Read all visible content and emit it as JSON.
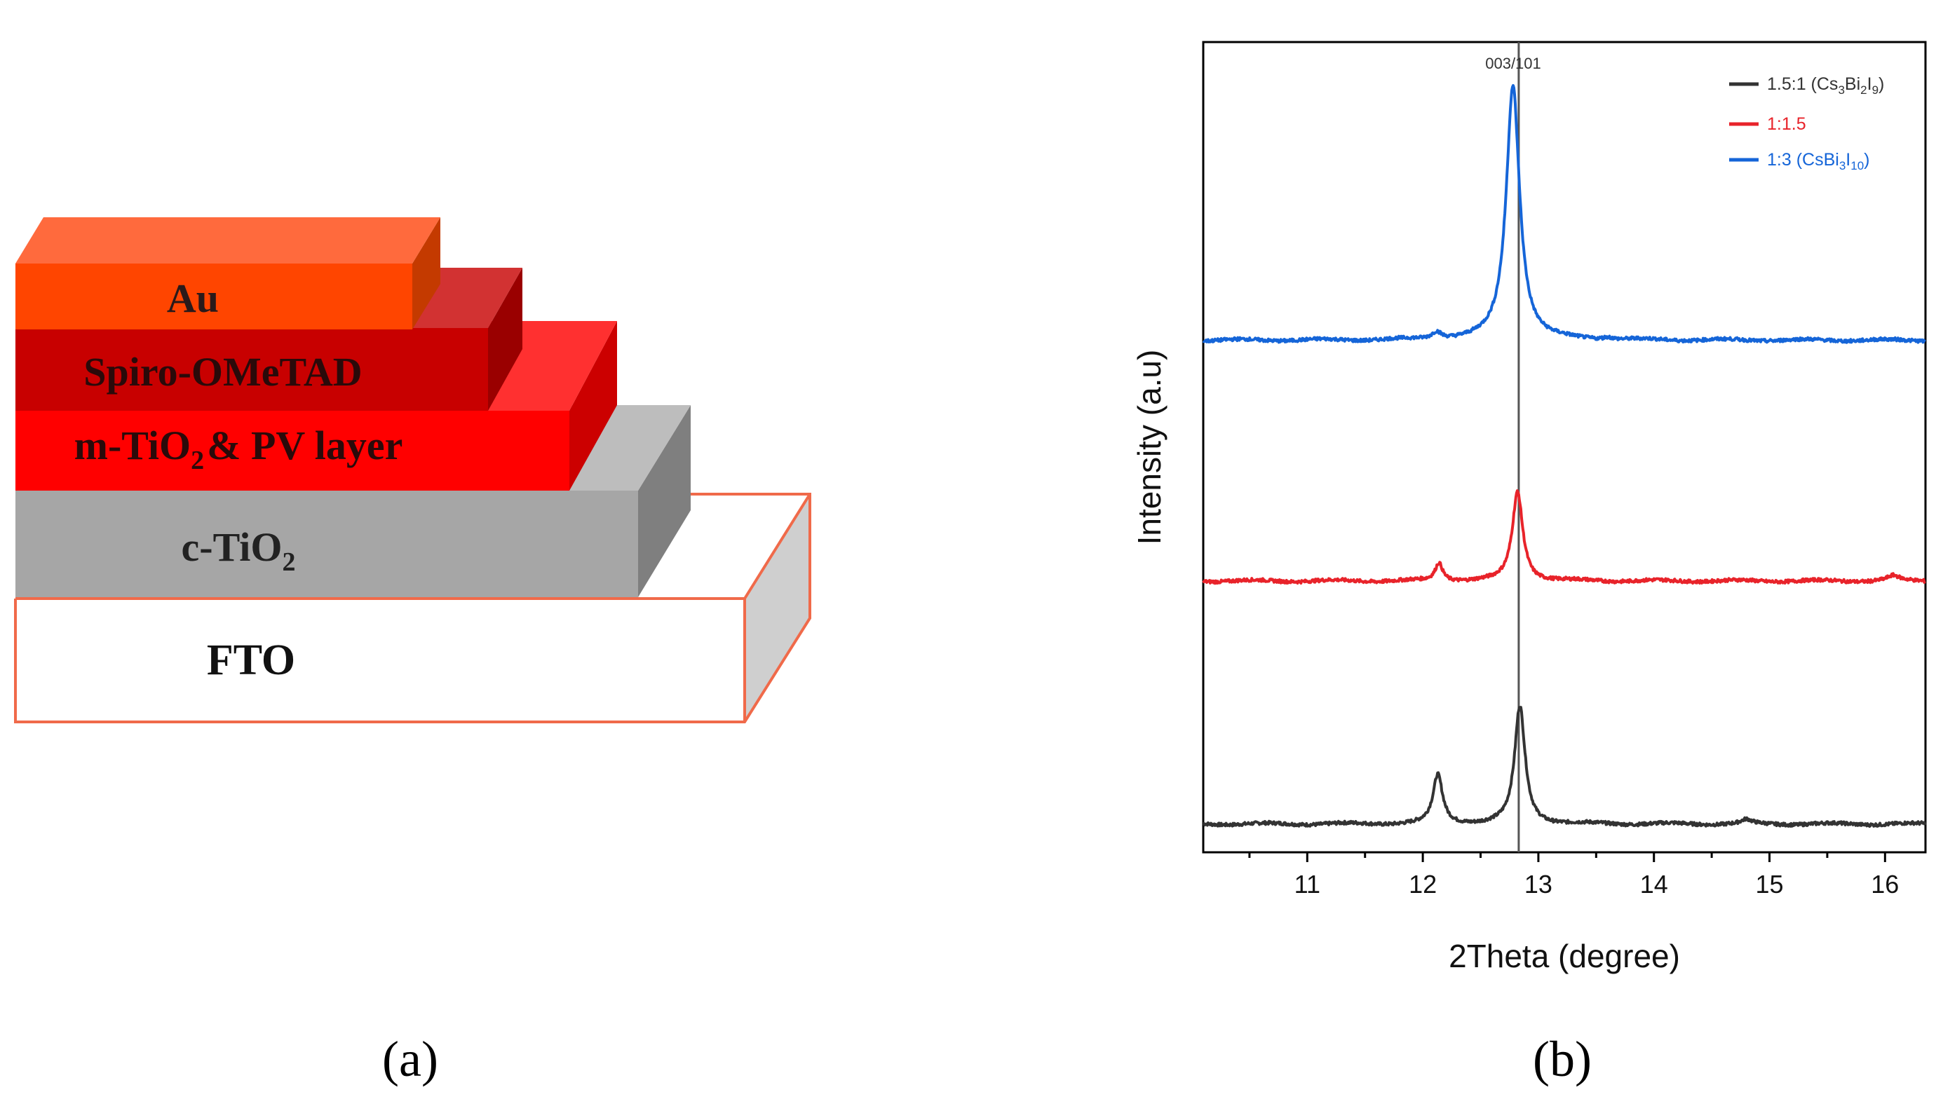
{
  "panel_a": {
    "label": "(a)",
    "layers": {
      "au": "Au",
      "spiro": "Spiro-OMeTAD",
      "mtio2_prefix": "m-TiO",
      "mtio2_sub": "2",
      "mtio2_suffix": "& PV layer",
      "ctio2_prefix": "c-TiO",
      "ctio2_sub": "2",
      "fto": "FTO"
    },
    "colors": {
      "au_front": "#ff4500",
      "au_top": "#ff6a3d",
      "au_side": "#c43a00",
      "spiro_front": "#c80000",
      "spiro_top": "#d23232",
      "spiro_side": "#9a0000",
      "mtio2_front": "#ff0000",
      "mtio2_top": "#ff3030",
      "mtio2_side": "#cc0000",
      "ctio2_front": "#a6a6a6",
      "ctio2_top": "#bdbdbd",
      "ctio2_side": "#7f7f7f",
      "fto_front": "#ffffff",
      "fto_side": "#cfcfcf",
      "fto_edge": "#f06a4a"
    }
  },
  "panel_b": {
    "label": "(b)",
    "annotation": "003/101",
    "legend": [
      {
        "pre": "1.5:1 (Cs",
        "s1": "3",
        "mid": "Bi",
        "s2": "2",
        "mid2": "I",
        "s3": "9",
        "post": ")",
        "color": "#333333"
      },
      {
        "pre": "1:1.5",
        "s1": "",
        "mid": "",
        "s2": "",
        "mid2": "",
        "s3": "",
        "post": "",
        "color": "#e8232a"
      },
      {
        "pre": "1:3 (CsBi",
        "s1": "3",
        "mid": "I",
        "s2": "10",
        "mid2": "",
        "s3": "",
        "post": ")",
        "color": "#1565d8"
      }
    ]
  },
  "chart_data": {
    "type": "line",
    "title": "",
    "xlabel": "2Theta (degree)",
    "ylabel": "Intensity (a.u)",
    "xlim": [
      10.1,
      16.35
    ],
    "ylim": [
      0,
      1
    ],
    "xticks": [
      "11",
      "12",
      "13",
      "14",
      "15",
      "16"
    ],
    "xtick_values": [
      11,
      12,
      13,
      14,
      15,
      16
    ],
    "reference_line_x": 12.83,
    "series": [
      {
        "name": "1.5:1 (Cs3Bi2I9)",
        "color": "#333333",
        "baseline": 0.035,
        "peaks": [
          {
            "x": 12.13,
            "h": 0.06,
            "w": 0.05
          },
          {
            "x": 12.84,
            "h": 0.145,
            "w": 0.055
          },
          {
            "x": 14.8,
            "h": 0.005,
            "w": 0.05
          }
        ]
      },
      {
        "name": "1:1.5",
        "color": "#e8232a",
        "baseline": 0.335,
        "peaks": [
          {
            "x": 12.14,
            "h": 0.022,
            "w": 0.04
          },
          {
            "x": 12.82,
            "h": 0.11,
            "w": 0.055
          },
          {
            "x": 16.07,
            "h": 0.006,
            "w": 0.06
          }
        ]
      },
      {
        "name": "1:3 (CsBi3I10)",
        "color": "#1565d8",
        "baseline": 0.632,
        "peaks": [
          {
            "x": 12.12,
            "h": 0.009,
            "w": 0.05
          },
          {
            "x": 12.78,
            "h": 0.315,
            "w": 0.07
          },
          {
            "x": 13.6,
            "h": 0.003,
            "w": 0.05
          }
        ]
      }
    ]
  }
}
